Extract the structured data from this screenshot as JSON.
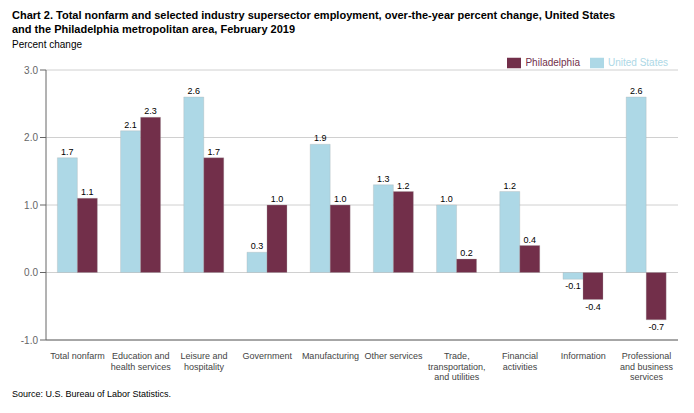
{
  "chart_data": {
    "type": "bar",
    "title": "Chart 2. Total nonfarm and selected industry supersector employment, over-the-year percent change, United States",
    "subtitle": "and the Philadelphia metropolitan area, February 2019",
    "ylabel": "Percent change",
    "annotations": [
      "Source: U.S. Bureau of Labor Statistics."
    ],
    "categories": [
      "Total nonfarm",
      "Education and\nhealth services",
      "Leisure and\nhospitality",
      "Government",
      "Manufacturing",
      "Other services",
      "Trade,\ntransportation,\nand utilities",
      "Financial\nactivities",
      "Information",
      "Professional\nand business\nservices"
    ],
    "series": [
      {
        "name": "United States",
        "color": "#ADD8E6",
        "values": [
          1.7,
          2.1,
          2.6,
          0.3,
          1.9,
          1.3,
          1.0,
          1.2,
          -0.1,
          2.6
        ],
        "value_labels": [
          "1.7",
          "2.1",
          "2.6",
          "0.3",
          "1.9",
          "1.3",
          "1.0",
          "1.2",
          "-0.1",
          "2.6"
        ]
      },
      {
        "name": "Philadelphia",
        "color": "#722F4A",
        "values": [
          1.1,
          2.3,
          1.7,
          1.0,
          1.0,
          1.2,
          0.2,
          0.4,
          -0.4,
          -0.7
        ],
        "value_labels": [
          "1.1",
          "2.3",
          "1.7",
          "1.0",
          "1.0",
          "1.2",
          "0.2",
          "0.4",
          "-0.4",
          "-0.7"
        ]
      }
    ],
    "ylim": [
      -1.0,
      3.0
    ],
    "yticks": [
      {
        "value": -1.0,
        "label": "-1.0"
      },
      {
        "value": 0.0,
        "label": "0.0"
      },
      {
        "value": 1.0,
        "label": "1.0"
      },
      {
        "value": 2.0,
        "label": "2.0"
      },
      {
        "value": 3.0,
        "label": "3.0"
      }
    ],
    "grid": true,
    "legend": "upper right",
    "data_labels": true
  }
}
